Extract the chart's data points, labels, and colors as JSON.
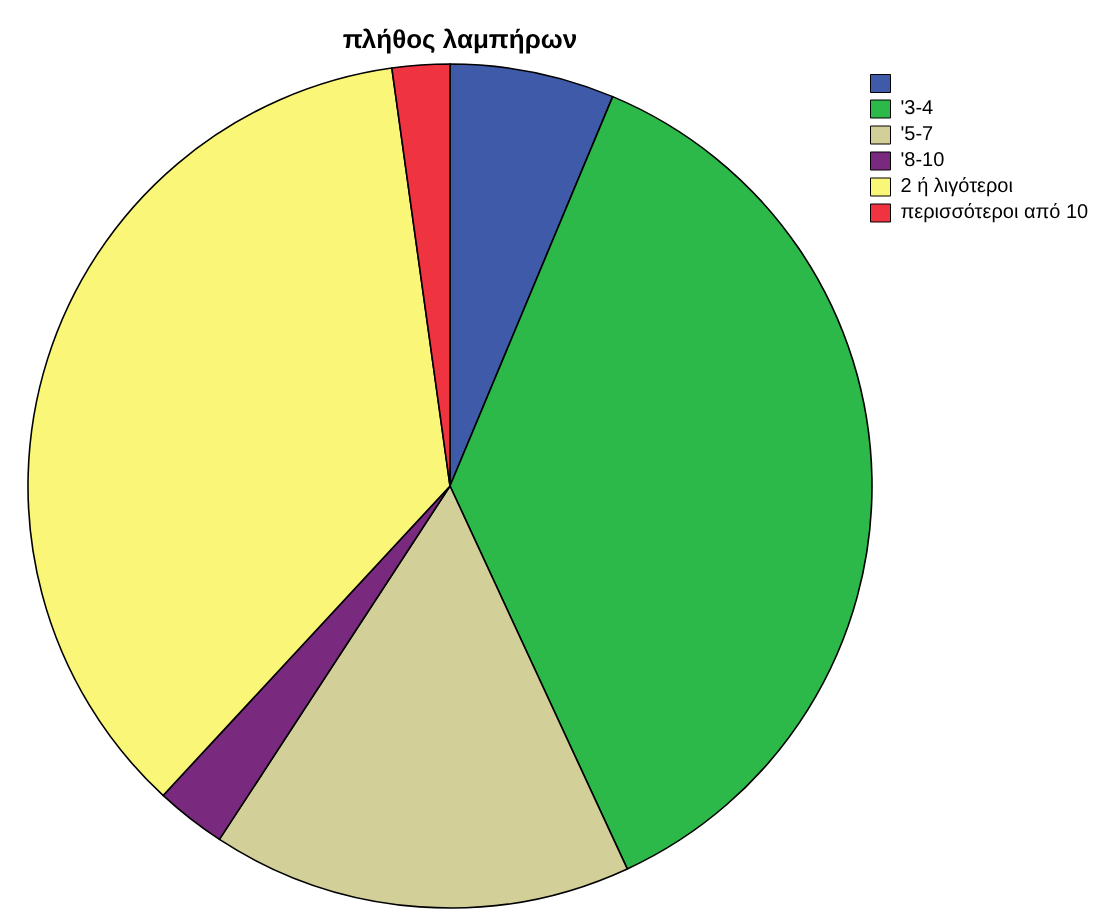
{
  "chart_data": {
    "type": "pie",
    "title": "πλήθος λαμπήρων",
    "categories": [
      null,
      "'3-4",
      "'5-7",
      "'8-10",
      "2 ή λιγότεροι",
      "περισσότεροι από 10"
    ],
    "values": [
      6.3,
      36.8,
      16.1,
      2.7,
      35.9,
      2.2
    ],
    "colors": [
      "#3f5aa8",
      "#2db84a",
      "#d3cf98",
      "#7a2a7e",
      "#faf678",
      "#ef3340"
    ],
    "legend": "top right"
  }
}
